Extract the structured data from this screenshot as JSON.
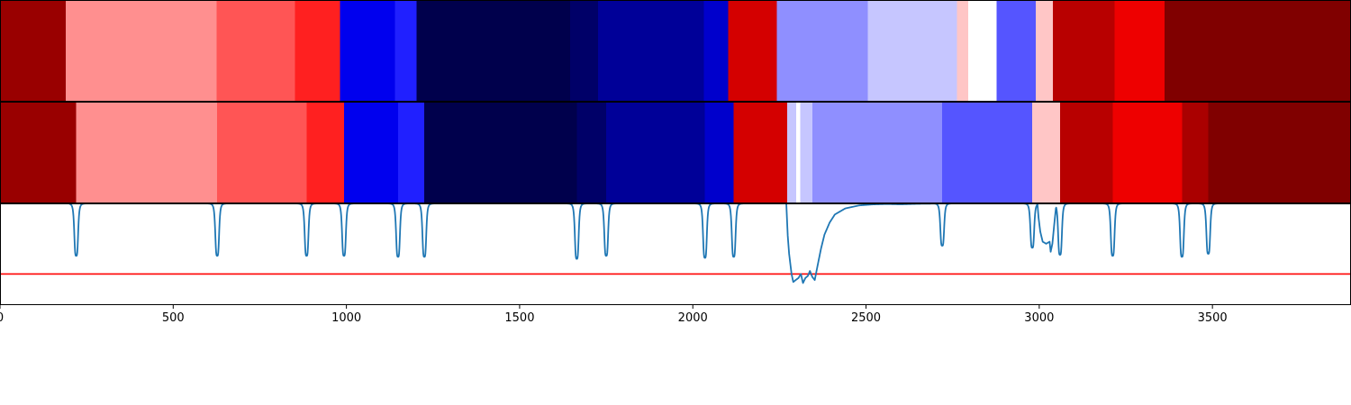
{
  "chart_data": {
    "type": "heatmap",
    "title": "",
    "xlabel": "",
    "ylabel": "",
    "xlim": [
      0,
      3900
    ],
    "grid": false,
    "legend": "none",
    "colormap": "seismic",
    "x_ticks": [
      0,
      500,
      1000,
      1500,
      2000,
      2500,
      3000,
      3500
    ],
    "x_tick_labels": [
      "0",
      "500",
      "1000",
      "1500",
      "2000",
      "2500",
      "3000",
      "3500"
    ],
    "rows": [
      {
        "segments": [
          {
            "start": 0,
            "end": 190,
            "color": "#990000"
          },
          {
            "start": 190,
            "end": 625,
            "color": "#ff8f8f"
          },
          {
            "start": 625,
            "end": 852,
            "color": "#ff5555"
          },
          {
            "start": 852,
            "end": 982,
            "color": "#ff2020"
          },
          {
            "start": 982,
            "end": 1140,
            "color": "#0000ee"
          },
          {
            "start": 1140,
            "end": 1202,
            "color": "#2020ff"
          },
          {
            "start": 1202,
            "end": 1646,
            "color": "#00004c"
          },
          {
            "start": 1646,
            "end": 1727,
            "color": "#000068"
          },
          {
            "start": 1727,
            "end": 2032,
            "color": "#000098"
          },
          {
            "start": 2032,
            "end": 2102,
            "color": "#0000cc"
          },
          {
            "start": 2102,
            "end": 2242,
            "color": "#d40000"
          },
          {
            "start": 2242,
            "end": 2505,
            "color": "#8f8fff"
          },
          {
            "start": 2505,
            "end": 2763,
            "color": "#c6c6ff"
          },
          {
            "start": 2763,
            "end": 2795,
            "color": "#ffc6c6"
          },
          {
            "start": 2795,
            "end": 2877,
            "color": "#ffffff"
          },
          {
            "start": 2877,
            "end": 2990,
            "color": "#5555ff"
          },
          {
            "start": 2990,
            "end": 3040,
            "color": "#ffc6c6"
          },
          {
            "start": 3040,
            "end": 3217,
            "color": "#b80000"
          },
          {
            "start": 3217,
            "end": 3362,
            "color": "#ee0000"
          },
          {
            "start": 3362,
            "end": 3900,
            "color": "#800000"
          }
        ]
      },
      {
        "segments": [
          {
            "start": 0,
            "end": 220,
            "color": "#990000"
          },
          {
            "start": 220,
            "end": 627,
            "color": "#ff8f8f"
          },
          {
            "start": 627,
            "end": 885,
            "color": "#ff5555"
          },
          {
            "start": 885,
            "end": 993,
            "color": "#ff2020"
          },
          {
            "start": 993,
            "end": 1149,
            "color": "#0000ee"
          },
          {
            "start": 1149,
            "end": 1225,
            "color": "#2020ff"
          },
          {
            "start": 1225,
            "end": 1665,
            "color": "#00004c"
          },
          {
            "start": 1665,
            "end": 1750,
            "color": "#000068"
          },
          {
            "start": 1750,
            "end": 2035,
            "color": "#000098"
          },
          {
            "start": 2035,
            "end": 2118,
            "color": "#0000cc"
          },
          {
            "start": 2118,
            "end": 2272,
            "color": "#d40000"
          },
          {
            "start": 2272,
            "end": 2298,
            "color": "#c6c6ff"
          },
          {
            "start": 2298,
            "end": 2310,
            "color": "#ffffff"
          },
          {
            "start": 2310,
            "end": 2345,
            "color": "#c6c6ff"
          },
          {
            "start": 2345,
            "end": 2720,
            "color": "#8f8fff"
          },
          {
            "start": 2720,
            "end": 2980,
            "color": "#5555ff"
          },
          {
            "start": 2980,
            "end": 3060,
            "color": "#ffc6c6"
          },
          {
            "start": 3060,
            "end": 3212,
            "color": "#b80000"
          },
          {
            "start": 3212,
            "end": 3412,
            "color": "#ee0000"
          },
          {
            "start": 3412,
            "end": 3488,
            "color": "#aa0000"
          },
          {
            "start": 3488,
            "end": 3900,
            "color": "#800000"
          }
        ]
      }
    ],
    "line_plot": {
      "color": "#1f77b4",
      "threshold": 0.3,
      "threshold_color": "#ff0000",
      "ylim": [
        0,
        1
      ],
      "baseline": 1.0,
      "dips": [
        {
          "x": 220,
          "depth": 0.48
        },
        {
          "x": 627,
          "depth": 0.48
        },
        {
          "x": 885,
          "depth": 0.48
        },
        {
          "x": 993,
          "depth": 0.48
        },
        {
          "x": 1149,
          "depth": 0.47
        },
        {
          "x": 1225,
          "depth": 0.47
        },
        {
          "x": 1665,
          "depth": 0.45
        },
        {
          "x": 1750,
          "depth": 0.48
        },
        {
          "x": 2035,
          "depth": 0.46
        },
        {
          "x": 2118,
          "depth": 0.47
        },
        {
          "x": 2720,
          "depth": 0.58
        },
        {
          "x": 2980,
          "depth": 0.56
        },
        {
          "x": 3060,
          "depth": 0.49
        },
        {
          "x": 3212,
          "depth": 0.48
        },
        {
          "x": 3412,
          "depth": 0.47
        },
        {
          "x": 3488,
          "depth": 0.5
        }
      ],
      "broad_feature": [
        [
          2270,
          0.99
        ],
        [
          2274,
          0.68
        ],
        [
          2278,
          0.5
        ],
        [
          2285,
          0.3
        ],
        [
          2290,
          0.22
        ],
        [
          2297,
          0.24
        ],
        [
          2305,
          0.26
        ],
        [
          2312,
          0.3
        ],
        [
          2318,
          0.21
        ],
        [
          2325,
          0.26
        ],
        [
          2332,
          0.28
        ],
        [
          2338,
          0.33
        ],
        [
          2345,
          0.27
        ],
        [
          2352,
          0.24
        ],
        [
          2360,
          0.38
        ],
        [
          2370,
          0.55
        ],
        [
          2380,
          0.69
        ],
        [
          2395,
          0.81
        ],
        [
          2410,
          0.89
        ],
        [
          2440,
          0.95
        ],
        [
          2480,
          0.98
        ],
        [
          2520,
          0.99
        ],
        [
          2560,
          0.994
        ],
        [
          2600,
          0.991
        ],
        [
          2650,
          0.996
        ],
        [
          2700,
          0.998
        ]
      ],
      "notch_feature": [
        [
          2995,
          0.99
        ],
        [
          2998,
          0.86
        ],
        [
          3003,
          0.72
        ],
        [
          3010,
          0.62
        ],
        [
          3020,
          0.6
        ],
        [
          3030,
          0.62
        ],
        [
          3033,
          0.52
        ],
        [
          3038,
          0.6
        ],
        [
          3043,
          0.78
        ],
        [
          3048,
          0.95
        ]
      ]
    }
  }
}
